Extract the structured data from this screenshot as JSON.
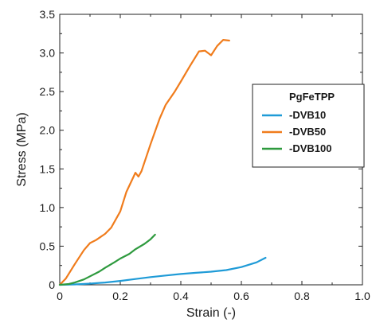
{
  "chart_data": {
    "type": "line",
    "title": "",
    "xlabel": "Strain (-)",
    "ylabel": "Stress (MPa)",
    "xlim": [
      0,
      1.0
    ],
    "ylim": [
      0,
      3.5
    ],
    "xticks": [
      "0",
      "0.2",
      "0.4",
      "0.6",
      "0.8",
      "1.0"
    ],
    "yticks": [
      "0",
      "0.5",
      "1.0",
      "1.5",
      "2.0",
      "2.5",
      "3.0",
      "3.5"
    ],
    "grid": false,
    "legend": {
      "title": "PgFeTPP",
      "placement": "right"
    },
    "series": [
      {
        "name": "-DVB10",
        "color": "#1f9bd7",
        "x": [
          0,
          0.05,
          0.1,
          0.15,
          0.2,
          0.25,
          0.3,
          0.35,
          0.4,
          0.45,
          0.5,
          0.55,
          0.6,
          0.65,
          0.68
        ],
        "y": [
          0,
          0.005,
          0.015,
          0.03,
          0.05,
          0.075,
          0.1,
          0.12,
          0.14,
          0.155,
          0.17,
          0.19,
          0.23,
          0.29,
          0.35
        ]
      },
      {
        "name": "-DVB50",
        "color": "#f07c1c",
        "x": [
          0,
          0.02,
          0.05,
          0.08,
          0.1,
          0.12,
          0.15,
          0.17,
          0.2,
          0.22,
          0.25,
          0.26,
          0.27,
          0.3,
          0.33,
          0.35,
          0.38,
          0.4,
          0.43,
          0.46,
          0.48,
          0.5,
          0.52,
          0.54,
          0.56
        ],
        "y": [
          0,
          0.08,
          0.27,
          0.45,
          0.54,
          0.58,
          0.66,
          0.74,
          0.95,
          1.2,
          1.45,
          1.4,
          1.47,
          1.82,
          2.15,
          2.33,
          2.5,
          2.63,
          2.83,
          3.02,
          3.03,
          2.97,
          3.09,
          3.17,
          3.16
        ]
      },
      {
        "name": "-DVB100",
        "color": "#2e9a3e",
        "x": [
          0,
          0.03,
          0.05,
          0.08,
          0.1,
          0.13,
          0.15,
          0.18,
          0.2,
          0.23,
          0.25,
          0.28,
          0.3,
          0.315
        ],
        "y": [
          0,
          0.01,
          0.03,
          0.07,
          0.11,
          0.17,
          0.22,
          0.29,
          0.34,
          0.4,
          0.46,
          0.53,
          0.59,
          0.65
        ]
      }
    ]
  }
}
